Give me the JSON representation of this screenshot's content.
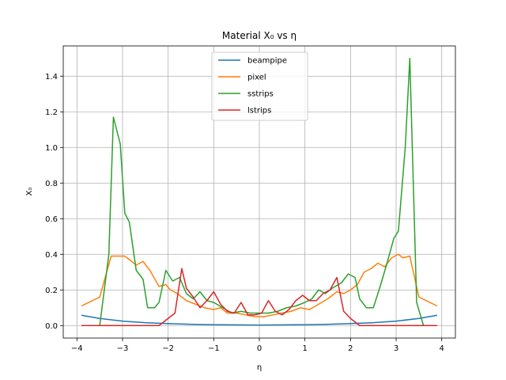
{
  "chart_data": {
    "type": "line",
    "title": "Material X₀ vs η",
    "xlabel": "η",
    "ylabel": "X₀",
    "xlim": [
      -4.3,
      4.3
    ],
    "ylim": [
      -0.07,
      1.57
    ],
    "xticks": [
      -4,
      -3,
      -2,
      -1,
      0,
      1,
      2,
      3,
      4
    ],
    "xtick_labels": [
      "−4",
      "−3",
      "−2",
      "−1",
      "0",
      "1",
      "2",
      "3",
      "4"
    ],
    "yticks": [
      0.0,
      0.2,
      0.4,
      0.6,
      0.8,
      1.0,
      1.2,
      1.4
    ],
    "ytick_labels": [
      "0.0",
      "0.2",
      "0.4",
      "0.6",
      "0.8",
      "1.0",
      "1.2",
      "1.4"
    ],
    "grid": true,
    "legend_position": "top-center",
    "series": [
      {
        "name": "beampipe",
        "color": "#1f77b4",
        "x": [
          -3.9,
          -3.5,
          -3.0,
          -2.5,
          -2.0,
          -1.5,
          -1.0,
          -0.5,
          0.0,
          0.5,
          1.0,
          1.5,
          2.0,
          2.5,
          3.0,
          3.5,
          3.9
        ],
        "y": [
          0.058,
          0.04,
          0.025,
          0.016,
          0.011,
          0.007,
          0.005,
          0.004,
          0.003,
          0.004,
          0.005,
          0.007,
          0.011,
          0.016,
          0.025,
          0.04,
          0.058
        ]
      },
      {
        "name": "pixel",
        "color": "#ff7f0e",
        "x": [
          -3.9,
          -3.5,
          -3.25,
          -3.1,
          -2.95,
          -2.85,
          -2.7,
          -2.55,
          -2.4,
          -2.2,
          -2.05,
          -1.95,
          -1.8,
          -1.6,
          -1.4,
          -1.2,
          -1.0,
          -0.85,
          -0.7,
          -0.5,
          -0.3,
          -0.1,
          0.1,
          0.3,
          0.5,
          0.7,
          0.9,
          1.1,
          1.3,
          1.5,
          1.7,
          1.85,
          2.0,
          2.15,
          2.3,
          2.45,
          2.6,
          2.75,
          2.9,
          3.05,
          3.15,
          3.3,
          3.5,
          3.9
        ],
        "y": [
          0.11,
          0.16,
          0.39,
          0.39,
          0.39,
          0.37,
          0.34,
          0.36,
          0.31,
          0.22,
          0.23,
          0.2,
          0.18,
          0.14,
          0.12,
          0.1,
          0.09,
          0.1,
          0.07,
          0.07,
          0.06,
          0.05,
          0.05,
          0.06,
          0.07,
          0.08,
          0.1,
          0.09,
          0.12,
          0.15,
          0.19,
          0.18,
          0.2,
          0.23,
          0.3,
          0.32,
          0.35,
          0.33,
          0.38,
          0.4,
          0.38,
          0.39,
          0.16,
          0.11
        ]
      },
      {
        "name": "sstrips",
        "color": "#2ca02c",
        "x": [
          -3.9,
          -3.5,
          -3.3,
          -3.2,
          -3.05,
          -2.95,
          -2.85,
          -2.7,
          -2.55,
          -2.45,
          -2.3,
          -2.2,
          -2.05,
          -1.9,
          -1.75,
          -1.6,
          -1.45,
          -1.3,
          -1.15,
          -1.0,
          -0.8,
          -0.6,
          -0.4,
          -0.2,
          0.0,
          0.2,
          0.4,
          0.6,
          0.8,
          1.0,
          1.15,
          1.3,
          1.45,
          1.6,
          1.8,
          1.95,
          2.1,
          2.2,
          2.35,
          2.5,
          2.65,
          2.8,
          2.95,
          3.05,
          3.2,
          3.3,
          3.45,
          3.6,
          3.9
        ],
        "y": [
          0.0,
          0.0,
          0.4,
          1.17,
          1.02,
          0.63,
          0.58,
          0.31,
          0.26,
          0.1,
          0.1,
          0.13,
          0.31,
          0.25,
          0.27,
          0.18,
          0.15,
          0.19,
          0.14,
          0.13,
          0.1,
          0.07,
          0.08,
          0.07,
          0.07,
          0.07,
          0.08,
          0.1,
          0.11,
          0.13,
          0.15,
          0.2,
          0.18,
          0.21,
          0.24,
          0.29,
          0.27,
          0.15,
          0.1,
          0.1,
          0.22,
          0.35,
          0.49,
          0.53,
          1.0,
          1.5,
          0.13,
          0.0,
          0.0
        ]
      },
      {
        "name": "lstrips",
        "color": "#d62728",
        "x": [
          -3.9,
          -3.5,
          -3.0,
          -2.5,
          -2.2,
          -2.0,
          -1.85,
          -1.7,
          -1.6,
          -1.45,
          -1.3,
          -1.15,
          -1.0,
          -0.85,
          -0.7,
          -0.55,
          -0.4,
          -0.25,
          -0.1,
          0.05,
          0.2,
          0.35,
          0.5,
          0.65,
          0.8,
          0.95,
          1.1,
          1.25,
          1.4,
          1.55,
          1.7,
          1.85,
          2.0,
          2.2,
          2.5,
          3.0,
          3.5,
          3.9
        ],
        "y": [
          0.0,
          0.0,
          0.0,
          0.0,
          0.0,
          0.04,
          0.07,
          0.32,
          0.21,
          0.16,
          0.1,
          0.14,
          0.19,
          0.12,
          0.08,
          0.07,
          0.13,
          0.06,
          0.06,
          0.07,
          0.14,
          0.08,
          0.06,
          0.09,
          0.14,
          0.17,
          0.14,
          0.14,
          0.18,
          0.2,
          0.27,
          0.08,
          0.04,
          0.0,
          0.0,
          0.0,
          0.0,
          0.0
        ]
      }
    ]
  }
}
